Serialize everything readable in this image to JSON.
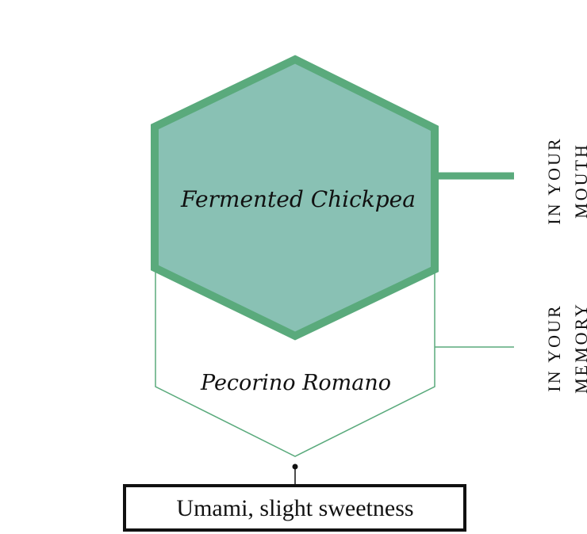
{
  "diagram": {
    "hexagon_front_label": "Fermented Chickpea",
    "hexagon_back_label": "Pecorino Romano",
    "side_label_mouth": [
      "IN YOUR",
      "MOUTH"
    ],
    "side_label_memory": [
      "IN YOUR",
      "MEMORY"
    ],
    "bottom_box_text": "Umami, slight sweetness"
  },
  "colors": {
    "hex_fill": "#89c1b4",
    "hex_stroke": "#5aaa7c",
    "outline_stroke": "#5aaa7c",
    "text": "#111111"
  }
}
